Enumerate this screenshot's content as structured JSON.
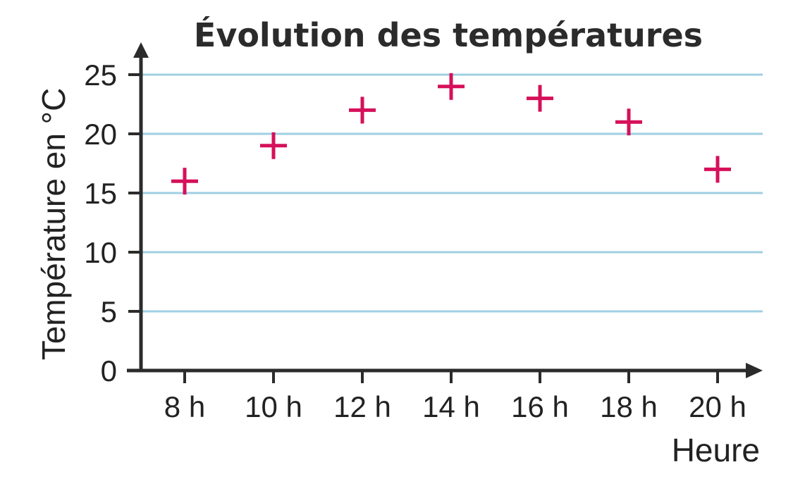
{
  "chart_data": {
    "type": "scatter",
    "title": "Évolution des températures",
    "xlabel": "Heure",
    "ylabel": "Température en °C",
    "categories": [
      "8 h",
      "10 h",
      "12 h",
      "14 h",
      "16 h",
      "18 h",
      "20 h"
    ],
    "values": [
      16,
      19,
      22,
      24,
      23,
      21,
      17
    ],
    "ylim": [
      0,
      25
    ],
    "yticks": [
      0,
      5,
      10,
      15,
      20,
      25
    ],
    "grid": true,
    "marker": "plus",
    "marker_color": "#d6105a"
  }
}
